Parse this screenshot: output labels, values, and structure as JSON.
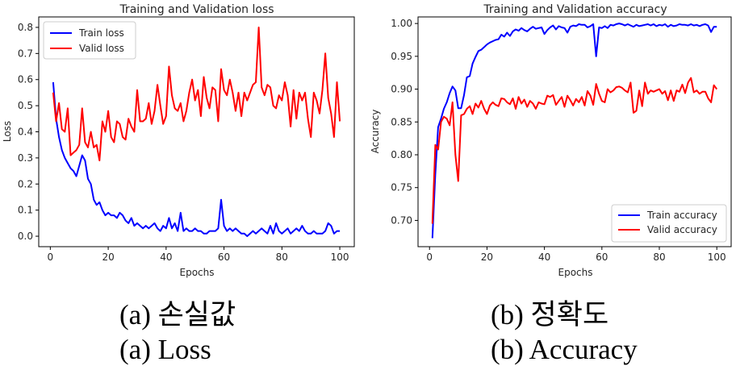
{
  "charts": [
    {
      "title": "Training and Validation loss",
      "xlabel": "Epochs",
      "ylabel": "Loss",
      "xticks": [
        "0",
        "20",
        "40",
        "60",
        "80",
        "100"
      ],
      "yticks": [
        "0.0",
        "0.1",
        "0.2",
        "0.3",
        "0.4",
        "0.5",
        "0.6",
        "0.7",
        "0.8"
      ],
      "legend": [
        "Train loss",
        "Valid loss"
      ],
      "caption_ko": "(a) 손실값",
      "caption_en": "(a) Loss"
    },
    {
      "title": "Training and Validation accuracy",
      "xlabel": "Epochs",
      "ylabel": "Accuracy",
      "xticks": [
        "0",
        "20",
        "40",
        "60",
        "80",
        "100"
      ],
      "yticks": [
        "0.70",
        "0.75",
        "0.80",
        "0.85",
        "0.90",
        "0.95",
        "1.00"
      ],
      "legend": [
        "Train accuracy",
        "Valid accuracy"
      ],
      "caption_ko": "(b) 정확도",
      "caption_en": "(b) Accuracy"
    }
  ],
  "chart_data": [
    {
      "type": "line",
      "title": "Training and Validation loss",
      "xlabel": "Epochs",
      "ylabel": "Loss",
      "xlim": [
        -4,
        105
      ],
      "ylim": [
        -0.04,
        0.84
      ],
      "grid": false,
      "legend_position": "top-left",
      "x": [
        1,
        2,
        3,
        4,
        5,
        6,
        7,
        8,
        9,
        10,
        11,
        12,
        13,
        14,
        15,
        16,
        17,
        18,
        19,
        20,
        21,
        22,
        23,
        24,
        25,
        26,
        27,
        28,
        29,
        30,
        31,
        32,
        33,
        34,
        35,
        36,
        37,
        38,
        39,
        40,
        41,
        42,
        43,
        44,
        45,
        46,
        47,
        48,
        49,
        50,
        51,
        52,
        53,
        54,
        55,
        56,
        57,
        58,
        59,
        60,
        61,
        62,
        63,
        64,
        65,
        66,
        67,
        68,
        69,
        70,
        71,
        72,
        73,
        74,
        75,
        76,
        77,
        78,
        79,
        80,
        81,
        82,
        83,
        84,
        85,
        86,
        87,
        88,
        89,
        90,
        91,
        92,
        93,
        94,
        95,
        96,
        97,
        98,
        99,
        100
      ],
      "series": [
        {
          "name": "Train loss",
          "color": "#0000ff",
          "values": [
            0.59,
            0.45,
            0.38,
            0.33,
            0.3,
            0.28,
            0.26,
            0.25,
            0.23,
            0.27,
            0.31,
            0.29,
            0.22,
            0.2,
            0.14,
            0.12,
            0.13,
            0.1,
            0.08,
            0.09,
            0.08,
            0.08,
            0.07,
            0.09,
            0.08,
            0.06,
            0.05,
            0.07,
            0.04,
            0.05,
            0.04,
            0.03,
            0.04,
            0.03,
            0.04,
            0.05,
            0.03,
            0.02,
            0.04,
            0.03,
            0.07,
            0.03,
            0.05,
            0.02,
            0.09,
            0.02,
            0.03,
            0.02,
            0.02,
            0.03,
            0.02,
            0.02,
            0.01,
            0.01,
            0.02,
            0.02,
            0.02,
            0.03,
            0.14,
            0.04,
            0.02,
            0.03,
            0.02,
            0.03,
            0.02,
            0.01,
            0.01,
            0.0,
            0.01,
            0.02,
            0.01,
            0.02,
            0.03,
            0.02,
            0.01,
            0.04,
            0.01,
            0.05,
            0.02,
            0.01,
            0.02,
            0.03,
            0.01,
            0.02,
            0.03,
            0.02,
            0.04,
            0.02,
            0.01,
            0.01,
            0.02,
            0.01,
            0.01,
            0.01,
            0.02,
            0.05,
            0.04,
            0.01,
            0.02,
            0.02
          ]
        },
        {
          "name": "Valid loss",
          "color": "#ff0000",
          "values": [
            0.55,
            0.44,
            0.51,
            0.41,
            0.4,
            0.49,
            0.31,
            0.32,
            0.33,
            0.35,
            0.49,
            0.36,
            0.34,
            0.4,
            0.34,
            0.35,
            0.29,
            0.44,
            0.4,
            0.48,
            0.38,
            0.36,
            0.44,
            0.43,
            0.38,
            0.37,
            0.45,
            0.42,
            0.4,
            0.56,
            0.44,
            0.44,
            0.45,
            0.51,
            0.43,
            0.48,
            0.58,
            0.5,
            0.43,
            0.46,
            0.65,
            0.54,
            0.49,
            0.48,
            0.51,
            0.44,
            0.48,
            0.55,
            0.6,
            0.52,
            0.56,
            0.46,
            0.61,
            0.53,
            0.49,
            0.57,
            0.56,
            0.44,
            0.64,
            0.56,
            0.54,
            0.6,
            0.55,
            0.48,
            0.55,
            0.46,
            0.55,
            0.52,
            0.55,
            0.58,
            0.59,
            0.8,
            0.57,
            0.54,
            0.58,
            0.57,
            0.5,
            0.49,
            0.54,
            0.52,
            0.59,
            0.54,
            0.42,
            0.56,
            0.45,
            0.55,
            0.52,
            0.55,
            0.45,
            0.38,
            0.55,
            0.52,
            0.47,
            0.56,
            0.7,
            0.53,
            0.47,
            0.38,
            0.59,
            0.44
          ]
        }
      ]
    },
    {
      "type": "line",
      "title": "Training and Validation accuracy",
      "xlabel": "Epochs",
      "ylabel": "Accuracy",
      "xlim": [
        -4,
        105
      ],
      "ylim": [
        0.66,
        1.01
      ],
      "grid": false,
      "legend_position": "bottom-right",
      "x": [
        1,
        2,
        3,
        4,
        5,
        6,
        7,
        8,
        9,
        10,
        11,
        12,
        13,
        14,
        15,
        16,
        17,
        18,
        19,
        20,
        21,
        22,
        23,
        24,
        25,
        26,
        27,
        28,
        29,
        30,
        31,
        32,
        33,
        34,
        35,
        36,
        37,
        38,
        39,
        40,
        41,
        42,
        43,
        44,
        45,
        46,
        47,
        48,
        49,
        50,
        51,
        52,
        53,
        54,
        55,
        56,
        57,
        58,
        59,
        60,
        61,
        62,
        63,
        64,
        65,
        66,
        67,
        68,
        69,
        70,
        71,
        72,
        73,
        74,
        75,
        76,
        77,
        78,
        79,
        80,
        81,
        82,
        83,
        84,
        85,
        86,
        87,
        88,
        89,
        90,
        91,
        92,
        93,
        94,
        95,
        96,
        97,
        98,
        99,
        100
      ],
      "series": [
        {
          "name": "Train accuracy",
          "color": "#0000ff",
          "values": [
            0.673,
            0.77,
            0.842,
            0.855,
            0.87,
            0.88,
            0.894,
            0.904,
            0.898,
            0.871,
            0.871,
            0.891,
            0.918,
            0.92,
            0.939,
            0.949,
            0.958,
            0.96,
            0.964,
            0.968,
            0.971,
            0.973,
            0.975,
            0.976,
            0.983,
            0.98,
            0.986,
            0.981,
            0.988,
            0.991,
            0.989,
            0.993,
            0.99,
            0.988,
            0.992,
            0.995,
            0.992,
            0.993,
            0.994,
            0.984,
            0.99,
            0.994,
            0.997,
            0.991,
            0.996,
            0.994,
            0.993,
            0.986,
            0.995,
            0.997,
            0.996,
            0.999,
            0.998,
            0.998,
            0.994,
            0.996,
            0.999,
            0.95,
            0.994,
            0.993,
            0.996,
            0.993,
            0.998,
            0.997,
            0.999,
            1.0,
            0.999,
            0.997,
            0.999,
            0.997,
            0.995,
            0.998,
            0.996,
            0.997,
            0.998,
            0.999,
            0.997,
            0.999,
            0.996,
            0.998,
            0.997,
            0.999,
            0.995,
            0.998,
            0.996,
            0.997,
            0.999,
            0.998,
            0.998,
            0.997,
            0.999,
            0.997,
            0.998,
            0.996,
            0.998,
            0.999,
            0.997,
            0.987,
            0.995,
            0.995
          ]
        },
        {
          "name": "Valid accuracy",
          "color": "#ff0000",
          "values": [
            0.695,
            0.815,
            0.808,
            0.85,
            0.858,
            0.855,
            0.845,
            0.88,
            0.8,
            0.76,
            0.86,
            0.862,
            0.87,
            0.874,
            0.862,
            0.878,
            0.872,
            0.882,
            0.87,
            0.862,
            0.875,
            0.88,
            0.876,
            0.874,
            0.886,
            0.885,
            0.88,
            0.877,
            0.886,
            0.87,
            0.888,
            0.878,
            0.884,
            0.873,
            0.882,
            0.878,
            0.87,
            0.88,
            0.878,
            0.877,
            0.89,
            0.888,
            0.891,
            0.876,
            0.882,
            0.888,
            0.873,
            0.89,
            0.883,
            0.875,
            0.885,
            0.88,
            0.888,
            0.875,
            0.897,
            0.89,
            0.876,
            0.908,
            0.893,
            0.882,
            0.88,
            0.9,
            0.895,
            0.898,
            0.903,
            0.904,
            0.902,
            0.898,
            0.895,
            0.91,
            0.864,
            0.867,
            0.898,
            0.874,
            0.91,
            0.893,
            0.898,
            0.896,
            0.898,
            0.9,
            0.893,
            0.897,
            0.883,
            0.898,
            0.882,
            0.898,
            0.896,
            0.907,
            0.894,
            0.91,
            0.917,
            0.895,
            0.898,
            0.893,
            0.896,
            0.896,
            0.886,
            0.88,
            0.906,
            0.9
          ]
        }
      ]
    }
  ]
}
